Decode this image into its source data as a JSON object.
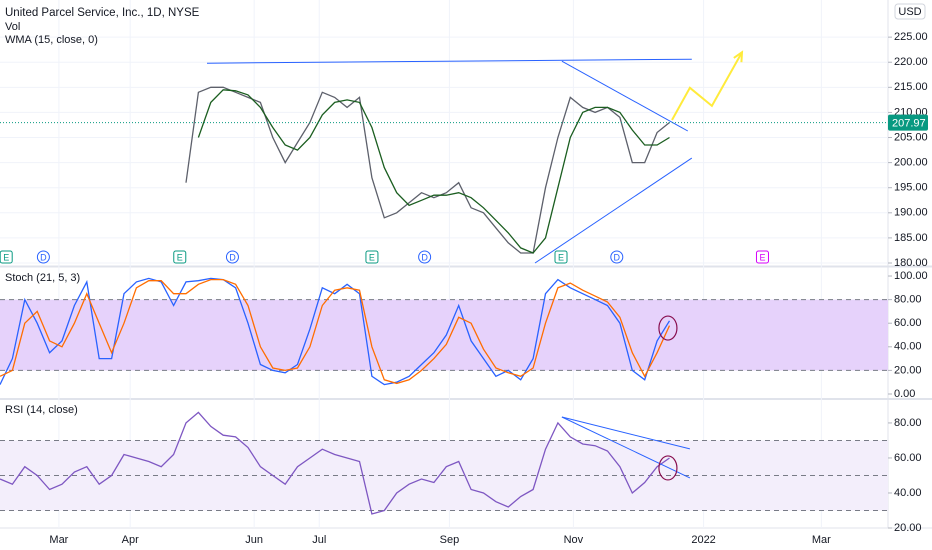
{
  "chart_data": [
    {
      "type": "line",
      "title": "United Parcel Service, Inc., 1D, NYSE",
      "labels": [
        "Vol",
        "WMA (15, close, 0)"
      ],
      "currency": "USD",
      "x": [
        0,
        4,
        8,
        12,
        16,
        20,
        24,
        28,
        32,
        36,
        40,
        44,
        48,
        52,
        56,
        60,
        64,
        68,
        72,
        76,
        80,
        84,
        88,
        92,
        96,
        100,
        104,
        108,
        112,
        116,
        120,
        124,
        128,
        132,
        136,
        140,
        144,
        148,
        152,
        156,
        160,
        164,
        168,
        172,
        176,
        180,
        184,
        188,
        192,
        196,
        200,
        204,
        208,
        212,
        216
      ],
      "xlim": [
        0,
        286.5
      ],
      "ylim": [
        179.6,
        232.4
      ],
      "yticks": [
        {
          "value": 180,
          "label": "180.00"
        },
        {
          "value": 185,
          "label": "185.00"
        },
        {
          "value": 190,
          "label": "190.00"
        },
        {
          "value": 195,
          "label": "195.00"
        },
        {
          "value": 200,
          "label": "200.00"
        },
        {
          "value": 205,
          "label": "205.00"
        },
        {
          "value": 210,
          "label": "210.00"
        },
        {
          "value": 215,
          "label": "215.00"
        },
        {
          "value": 220,
          "label": "220.00"
        },
        {
          "value": 225,
          "label": "225.00"
        }
      ],
      "grid": true,
      "series": [
        {
          "color": "#5d606b",
          "values": [
            null,
            null,
            null,
            null,
            null,
            null,
            null,
            null,
            null,
            null,
            null,
            null,
            null,
            null,
            null,
            196,
            214,
            215,
            215,
            214,
            213,
            212,
            205,
            200,
            204,
            208,
            214,
            213,
            211,
            213,
            197,
            189,
            190,
            192,
            194,
            193,
            194,
            196,
            191,
            190,
            187,
            184,
            182,
            182,
            195,
            205,
            213,
            211,
            210,
            211,
            209,
            200,
            200,
            206,
            208
          ]
        },
        {
          "name": "WMA (15, close, 0)",
          "color": "#1b5e20",
          "values": [
            null,
            null,
            null,
            null,
            null,
            null,
            null,
            null,
            null,
            null,
            null,
            null,
            null,
            null,
            null,
            null,
            205,
            212,
            214.5,
            214.3,
            213.5,
            211,
            207,
            203.5,
            202.5,
            205,
            209.5,
            212,
            212.5,
            212,
            207,
            199,
            194,
            191.5,
            192.5,
            193.5,
            193.5,
            194,
            193,
            191,
            188.5,
            186,
            183,
            182,
            185,
            195,
            205,
            210,
            211,
            211,
            210,
            206.5,
            203.5,
            203.5,
            205
          ]
        }
      ],
      "last_price": 207.97,
      "events": [
        {
          "x": 2,
          "label": "E",
          "color": "#089981"
        },
        {
          "x": 14,
          "label": "D",
          "color": "#2962ff"
        },
        {
          "x": 58,
          "label": "E",
          "color": "#089981"
        },
        {
          "x": 75,
          "label": "D",
          "color": "#2962ff"
        },
        {
          "x": 120,
          "label": "E",
          "color": "#089981"
        },
        {
          "x": 137,
          "label": "D",
          "color": "#2962ff"
        },
        {
          "x": 181,
          "label": "E",
          "color": "#089981"
        },
        {
          "x": 199,
          "label": "D",
          "color": "#2962ff"
        },
        {
          "x": 246,
          "label": "E",
          "color": "#d500f9"
        }
      ],
      "drawings": [
        {
          "kind": "line",
          "x": [
            66.8,
            223.2
          ],
          "y": [
            219.8,
            220.6
          ],
          "color": "#2962ff"
        },
        {
          "kind": "line",
          "x": [
            181.3,
            221.9
          ],
          "y": [
            220.2,
            206.3
          ],
          "color": "#2962ff"
        },
        {
          "kind": "line",
          "x": [
            172.6,
            223.2
          ],
          "y": [
            180,
            200.9
          ],
          "color": "#2962ff"
        },
        {
          "kind": "arrow",
          "x": [
            216.8,
            222.6,
            229.7,
            239.4
          ],
          "y": [
            208.5,
            214.9,
            211.3,
            222
          ],
          "color": "#ffeb3b"
        }
      ]
    },
    {
      "type": "line",
      "title": "Stoch (21, 5, 3)",
      "x": [
        0,
        4,
        8,
        12,
        16,
        20,
        24,
        28,
        32,
        36,
        40,
        44,
        48,
        52,
        56,
        60,
        64,
        68,
        72,
        76,
        80,
        84,
        88,
        92,
        96,
        100,
        104,
        108,
        112,
        116,
        120,
        124,
        128,
        132,
        136,
        140,
        144,
        148,
        152,
        156,
        160,
        164,
        168,
        172,
        176,
        180,
        184,
        188,
        192,
        196,
        200,
        204,
        208,
        212,
        216
      ],
      "xlim": [
        0,
        286.5
      ],
      "ylim": [
        -3.4,
        106.8
      ],
      "yticks": [
        {
          "value": 0,
          "label": "0.00"
        },
        {
          "value": 20,
          "label": "20.00"
        },
        {
          "value": 40,
          "label": "40.00"
        },
        {
          "value": 60,
          "label": "60.00"
        },
        {
          "value": 80,
          "label": "80.00"
        },
        {
          "value": 100,
          "label": "100.00"
        }
      ],
      "bands": [
        20,
        80
      ],
      "band_color": "#e6d2fb",
      "series": [
        {
          "color": "#2962ff",
          "values": [
            8,
            30,
            80,
            60,
            35,
            45,
            75,
            95,
            30,
            30,
            85,
            95,
            98,
            95,
            75,
            95,
            96,
            98,
            97,
            90,
            60,
            25,
            20,
            18,
            25,
            55,
            90,
            85,
            93,
            85,
            15,
            8,
            10,
            15,
            25,
            35,
            50,
            75,
            45,
            30,
            15,
            20,
            12,
            30,
            85,
            97,
            90,
            85,
            80,
            75,
            60,
            20,
            12,
            45,
            62
          ]
        },
        {
          "color": "#ff6d00",
          "values": [
            15,
            20,
            60,
            70,
            45,
            40,
            60,
            85,
            60,
            35,
            60,
            90,
            96,
            96,
            85,
            85,
            93,
            97,
            97,
            93,
            75,
            40,
            22,
            20,
            22,
            40,
            75,
            88,
            90,
            88,
            40,
            12,
            9,
            12,
            20,
            30,
            42,
            65,
            60,
            38,
            22,
            18,
            15,
            22,
            60,
            90,
            94,
            88,
            83,
            78,
            65,
            35,
            15,
            35,
            58
          ]
        }
      ],
      "drawings": [
        {
          "kind": "ellipse",
          "x": [
            215.5
          ],
          "y": [
            55.9
          ],
          "color": "#880e4f"
        }
      ]
    },
    {
      "type": "line",
      "title": "RSI (14, close)",
      "x": [
        0,
        4,
        8,
        12,
        16,
        20,
        24,
        28,
        32,
        36,
        40,
        44,
        48,
        52,
        56,
        60,
        64,
        68,
        72,
        76,
        80,
        84,
        88,
        92,
        96,
        100,
        104,
        108,
        112,
        116,
        120,
        124,
        128,
        132,
        136,
        140,
        144,
        148,
        152,
        156,
        160,
        164,
        168,
        172,
        176,
        180,
        184,
        188,
        192,
        196,
        200,
        204,
        208,
        212,
        216
      ],
      "xlim": [
        0,
        286.5
      ],
      "ylim": [
        20,
        93.1
      ],
      "yticks": [
        {
          "value": 20,
          "label": "20.00"
        },
        {
          "value": 40,
          "label": "40.00"
        },
        {
          "value": 60,
          "label": "60.00"
        },
        {
          "value": 80,
          "label": "80.00"
        }
      ],
      "xticks": [
        {
          "value": 19,
          "label": "Mar"
        },
        {
          "value": 42,
          "label": "Apr"
        },
        {
          "value": 82,
          "label": "Jun"
        },
        {
          "value": 103,
          "label": "Jul"
        },
        {
          "value": 145,
          "label": "Sep"
        },
        {
          "value": 185,
          "label": "Nov"
        },
        {
          "value": 227,
          "label": "2022"
        },
        {
          "value": 265,
          "label": "Mar"
        }
      ],
      "bands": [
        30,
        50,
        70
      ],
      "band_color": "#f3eefb",
      "series": [
        {
          "color": "#7e57c2",
          "values": [
            48,
            45,
            55,
            50,
            42,
            45,
            52,
            55,
            45,
            50,
            62,
            60,
            58,
            55,
            62,
            80,
            86,
            78,
            73,
            72,
            66,
            55,
            50,
            45,
            55,
            60,
            65,
            62,
            60,
            58,
            28,
            30,
            40,
            45,
            48,
            46,
            55,
            58,
            42,
            40,
            35,
            32,
            38,
            42,
            65,
            80,
            72,
            68,
            67,
            64,
            55,
            40,
            46,
            55,
            60
          ]
        }
      ],
      "drawings": [
        {
          "kind": "line",
          "x": [
            181.3,
            222.6
          ],
          "y": [
            83.4,
            48.6
          ],
          "color": "#2962ff"
        },
        {
          "kind": "line",
          "x": [
            181.3,
            222.6
          ],
          "y": [
            83.4,
            65.2
          ],
          "color": "#2962ff"
        },
        {
          "kind": "ellipse",
          "x": [
            215.5
          ],
          "y": [
            54.3
          ],
          "color": "#880e4f"
        }
      ]
    }
  ]
}
